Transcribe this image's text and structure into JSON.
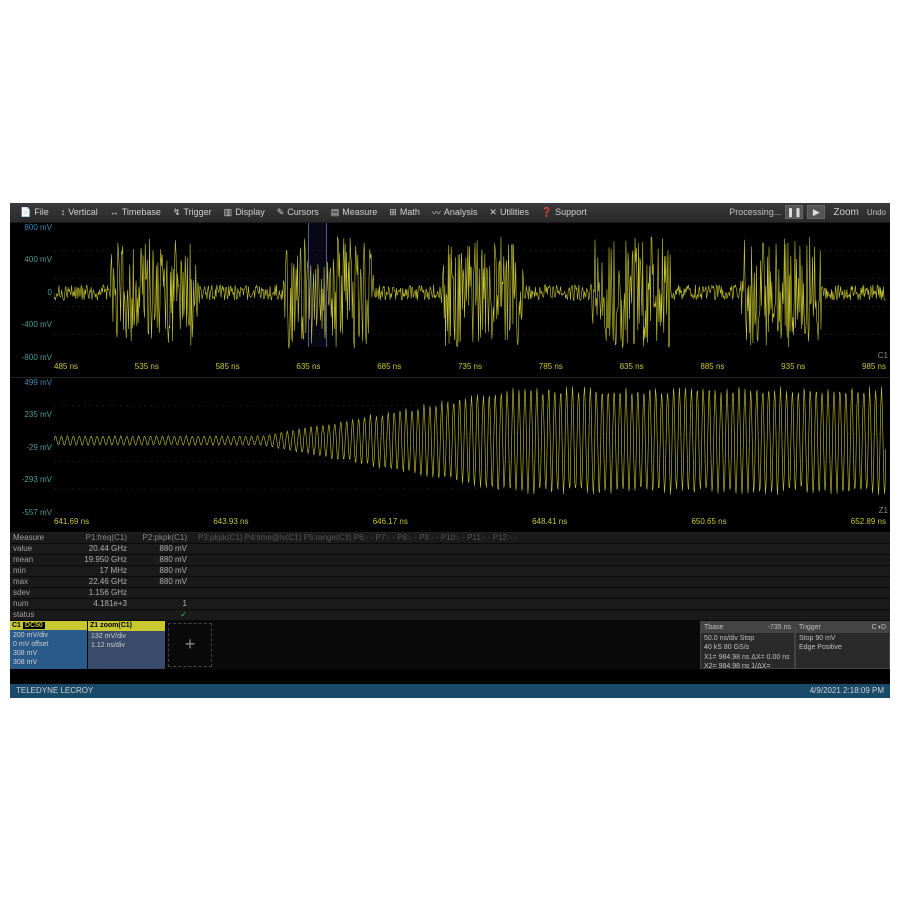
{
  "menubar": {
    "items": [
      {
        "icon": "📄",
        "label": "File"
      },
      {
        "icon": "↕",
        "label": "Vertical"
      },
      {
        "icon": "↔",
        "label": "Timebase"
      },
      {
        "icon": "↯",
        "label": "Trigger"
      },
      {
        "icon": "▥",
        "label": "Display"
      },
      {
        "icon": "✎",
        "label": "Cursors"
      },
      {
        "icon": "▤",
        "label": "Measure"
      },
      {
        "icon": "⊞",
        "label": "Math"
      },
      {
        "icon": "〰",
        "label": "Analysis"
      },
      {
        "icon": "✕",
        "label": "Utilities"
      },
      {
        "icon": "❓",
        "label": "Support"
      }
    ],
    "processing": "Processing...",
    "zoom": "Zoom",
    "undo": "Undo"
  },
  "main_wave": {
    "y_ticks": [
      "800 mV",
      "400 mV",
      "0",
      "-400 mV",
      "-800 mV"
    ],
    "x_ticks": [
      "485 ns",
      "535 ns",
      "585 ns",
      "635 ns",
      "685 ns",
      "735 ns",
      "785 ns",
      "835 ns",
      "885 ns",
      "935 ns",
      "985 ns"
    ],
    "color": "#c8c830",
    "grid_color": "#1a1a1a",
    "ch_label": "C1",
    "zoom_window": {
      "left_pct": 30.5,
      "width_pct": 2.3
    },
    "bursts": [
      {
        "start": 0.07,
        "end": 0.17,
        "amp": 0.85
      },
      {
        "start": 0.28,
        "end": 0.38,
        "amp": 0.85
      },
      {
        "start": 0.47,
        "end": 0.56,
        "amp": 0.85
      },
      {
        "start": 0.65,
        "end": 0.74,
        "amp": 0.85
      },
      {
        "start": 0.83,
        "end": 0.92,
        "amp": 0.85
      }
    ],
    "noise_amp": 0.12
  },
  "zoom_wave": {
    "y_ticks": [
      "499 mV",
      "235 mV",
      "-29 mV",
      "-293 mV",
      "-557 mV"
    ],
    "x_ticks": [
      "641.69 ns",
      "643.93 ns",
      "646.17 ns",
      "648.41 ns",
      "650.65 ns",
      "652.89 ns"
    ],
    "ch_label": "Z1",
    "color": "#c8c830",
    "envelope_start": 0.0,
    "envelope_ramp_start": 0.25,
    "envelope_full": 0.55,
    "noise_amp": 0.08,
    "full_amp": 0.9,
    "freq": 140
  },
  "measure": {
    "headers": [
      "Measure",
      "P1:freq(C1)",
      "P2:pkpk(C1)",
      "P3:pkpk(C1) P4:time@lv(C1)",
      "P5:range(C3)",
      "P6:- -",
      "P7:- -",
      "P8:- -",
      "P9:- -",
      "P10:- -",
      "P11:- -",
      "P12:- -"
    ],
    "rows": [
      {
        "label": "value",
        "p1": "20.44 GHz",
        "p2": "880 mV"
      },
      {
        "label": "mean",
        "p1": "19.950 GHz",
        "p2": "880 mV"
      },
      {
        "label": "min",
        "p1": "17 MHz",
        "p2": "880 mV"
      },
      {
        "label": "max",
        "p1": "22.46 GHz",
        "p2": "880 mV"
      },
      {
        "label": "sdev",
        "p1": "1.156 GHz",
        "p2": ""
      },
      {
        "label": "num",
        "p1": "4.181e+3",
        "p2": "1"
      },
      {
        "label": "status",
        "p1": "",
        "p2": "✓"
      }
    ]
  },
  "channels": {
    "c1": {
      "name": "C1",
      "badge": "DC50",
      "lines": [
        "200 mV/div",
        "0 mV offset",
        "308 mV",
        "308 mV"
      ]
    },
    "z1": {
      "name": "Z1",
      "badge": "zoom(C1)",
      "lines": [
        "132 mV/div",
        "1.12 ns/div",
        "",
        ""
      ]
    }
  },
  "info": {
    "tbase": {
      "hdr_l": "Tbase",
      "hdr_r": "-735 ns",
      "lines": [
        "50.0 ns/div  Stop",
        "40 kS     80 GS/s",
        "X1= 984.98 ns  ΔX= 0.00 ns",
        "X2= 984.98 ns  1/ΔX="
      ]
    },
    "trigger": {
      "hdr_l": "Trigger",
      "hdr_r": "C◑D",
      "lines": [
        "Stop     90 mV",
        "Edge   Positive",
        "",
        ""
      ]
    }
  },
  "footer": {
    "brand": "TELEDYNE LECROY",
    "timestamp": "4/9/2021 2:18:09 PM"
  }
}
